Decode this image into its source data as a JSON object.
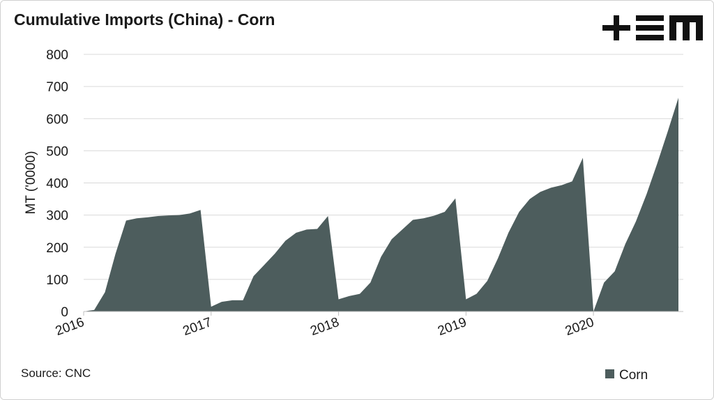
{
  "chart_data": {
    "type": "area",
    "title": "Cumulative Imports (China) - Corn",
    "y_label": "MT ('0000)",
    "source": "Source: CNC",
    "x": [
      2016,
      2016.083,
      2016.167,
      2016.25,
      2016.333,
      2016.417,
      2016.5,
      2016.583,
      2016.667,
      2016.75,
      2016.833,
      2016.917,
      2017,
      2017.083,
      2017.167,
      2017.25,
      2017.333,
      2017.417,
      2017.5,
      2017.583,
      2017.667,
      2017.75,
      2017.833,
      2017.917,
      2018,
      2018.083,
      2018.167,
      2018.25,
      2018.333,
      2018.417,
      2018.5,
      2018.583,
      2018.667,
      2018.75,
      2018.833,
      2018.917,
      2019,
      2019.083,
      2019.167,
      2019.25,
      2019.333,
      2019.417,
      2019.5,
      2019.583,
      2019.667,
      2019.75,
      2019.833,
      2019.917,
      2020,
      2020.083,
      2020.167,
      2020.25,
      2020.333,
      2020.417,
      2020.5,
      2020.583,
      2020.667
    ],
    "series": [
      {
        "name": "Corn",
        "color": "#4d5d5d",
        "values": [
          0,
          5,
          60,
          180,
          283,
          290,
          293,
          297,
          299,
          300,
          305,
          316,
          15,
          30,
          35,
          35,
          110,
          145,
          180,
          220,
          245,
          255,
          257,
          297,
          38,
          48,
          55,
          90,
          170,
          225,
          255,
          285,
          290,
          298,
          310,
          352,
          38,
          55,
          95,
          165,
          245,
          310,
          350,
          372,
          385,
          393,
          405,
          478,
          0,
          90,
          125,
          210,
          280,
          365,
          460,
          560,
          665
        ]
      }
    ],
    "xlim": [
      2016,
      2020.667
    ],
    "xticks": [
      2016,
      2017,
      2018,
      2019,
      2020
    ],
    "ylim": [
      0,
      800
    ],
    "yticks": [
      0,
      100,
      200,
      300,
      400,
      500,
      600,
      700,
      800
    ],
    "grid": true,
    "legend": "bottom-right"
  }
}
